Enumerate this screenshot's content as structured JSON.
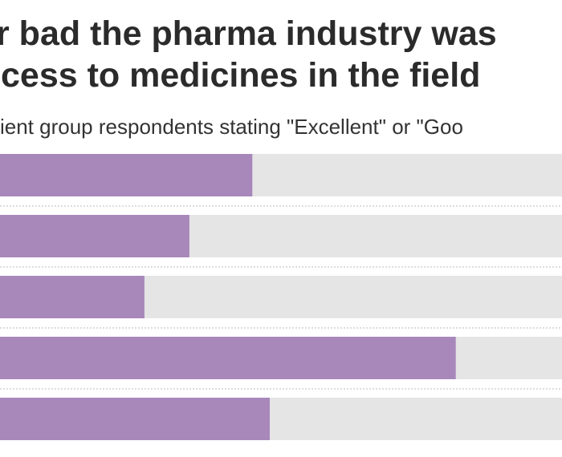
{
  "chart_data": {
    "type": "bar",
    "orientation": "horizontal",
    "title": [
      "r bad the pharma industry was",
      "cess to medicines in the field"
    ],
    "subtitle": "ient group respondents stating \"Excellent\" or \"Goo",
    "categories": [
      null,
      null,
      null,
      null,
      null
    ],
    "values": [
      44.9,
      33.7,
      25.7,
      81.1,
      48
    ],
    "color": "#a888bb",
    "track_color": "#e5e5e5",
    "xlim": [
      0,
      100
    ]
  }
}
